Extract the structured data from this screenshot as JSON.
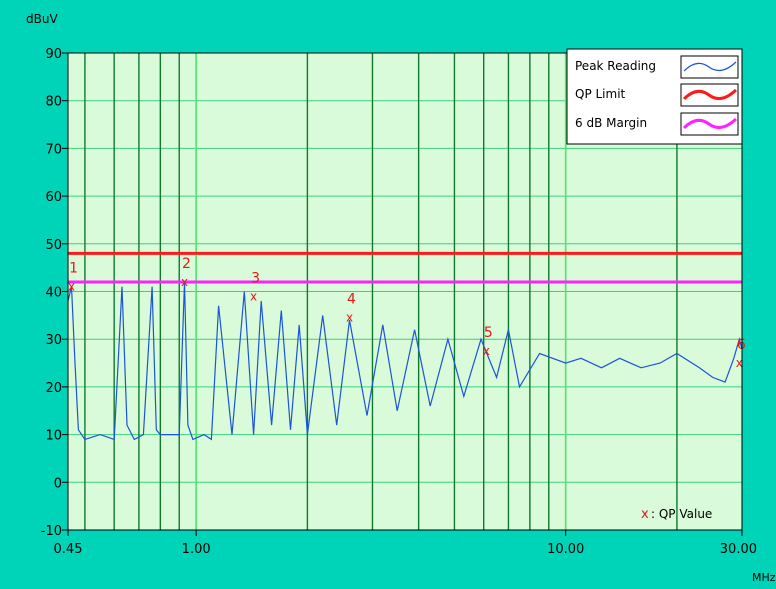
{
  "chart_data": {
    "type": "line",
    "ylabel": "dBuV",
    "xlabel": "MHz",
    "xscale": "log",
    "xlim": [
      0.45,
      30.0
    ],
    "ylim": [
      -10,
      90
    ],
    "y_ticks": [
      90,
      80,
      70,
      60,
      50,
      40,
      30,
      20,
      10,
      0,
      -10
    ],
    "y_tick_labels": [
      "90",
      "80",
      "70",
      "60",
      "50",
      "40",
      "30",
      "20",
      "10",
      "0",
      "-10"
    ],
    "x_ticks": [
      0.45,
      1.0,
      10.0,
      30.0
    ],
    "x_tick_labels": [
      "0.45",
      "1.00",
      "10.00",
      "30.00"
    ],
    "grid": true,
    "legend_position": "top-right",
    "legend": [
      {
        "label": "Peak Reading",
        "color": "#1c55d6"
      },
      {
        "label": "QP Limit",
        "color": "#ff1a1a"
      },
      {
        "label": "6 dB Margin",
        "color": "#ff22ff"
      }
    ],
    "qp_limit": 48,
    "margin_line": 42,
    "peak_series": {
      "name": "Peak Reading",
      "x": [
        0.45,
        0.46,
        0.47,
        0.48,
        0.5,
        0.55,
        0.6,
        0.63,
        0.65,
        0.68,
        0.72,
        0.76,
        0.78,
        0.8,
        0.84,
        0.9,
        0.93,
        0.95,
        0.98,
        1.05,
        1.1,
        1.15,
        1.25,
        1.35,
        1.43,
        1.5,
        1.6,
        1.7,
        1.8,
        1.9,
        2.0,
        2.2,
        2.4,
        2.6,
        2.9,
        3.2,
        3.5,
        3.9,
        4.3,
        4.8,
        5.3,
        5.9,
        6.5,
        7.0,
        7.5,
        8.5,
        10.0,
        11.0,
        12.5,
        14.0,
        16.0,
        18.0,
        20.0,
        23.0,
        25.0,
        27.0,
        28.5,
        29.5,
        30.0
      ],
      "y": [
        38,
        41,
        25,
        11,
        9,
        10,
        9,
        41,
        12,
        9,
        10,
        41,
        11,
        10,
        10,
        10,
        42,
        12,
        9,
        10,
        9,
        37,
        10,
        40,
        10,
        38,
        12,
        36,
        11,
        33,
        10,
        35,
        12,
        34,
        14,
        33,
        15,
        32,
        16,
        30,
        18,
        30,
        22,
        32,
        20,
        27,
        25,
        26,
        24,
        26,
        24,
        25,
        27,
        24,
        22,
        21,
        26,
        30,
        28
      ]
    },
    "markers": [
      {
        "label": "1",
        "x": 0.46,
        "y": 41
      },
      {
        "label": "2",
        "x": 0.93,
        "y": 42
      },
      {
        "label": "3",
        "x": 1.43,
        "y": 39
      },
      {
        "label": "4",
        "x": 2.6,
        "y": 34.5
      },
      {
        "label": "5",
        "x": 6.1,
        "y": 27.5
      },
      {
        "label": "6",
        "x": 29.5,
        "y": 25
      }
    ],
    "annotation": {
      "marker": "x",
      "text": ": QP Value"
    }
  }
}
